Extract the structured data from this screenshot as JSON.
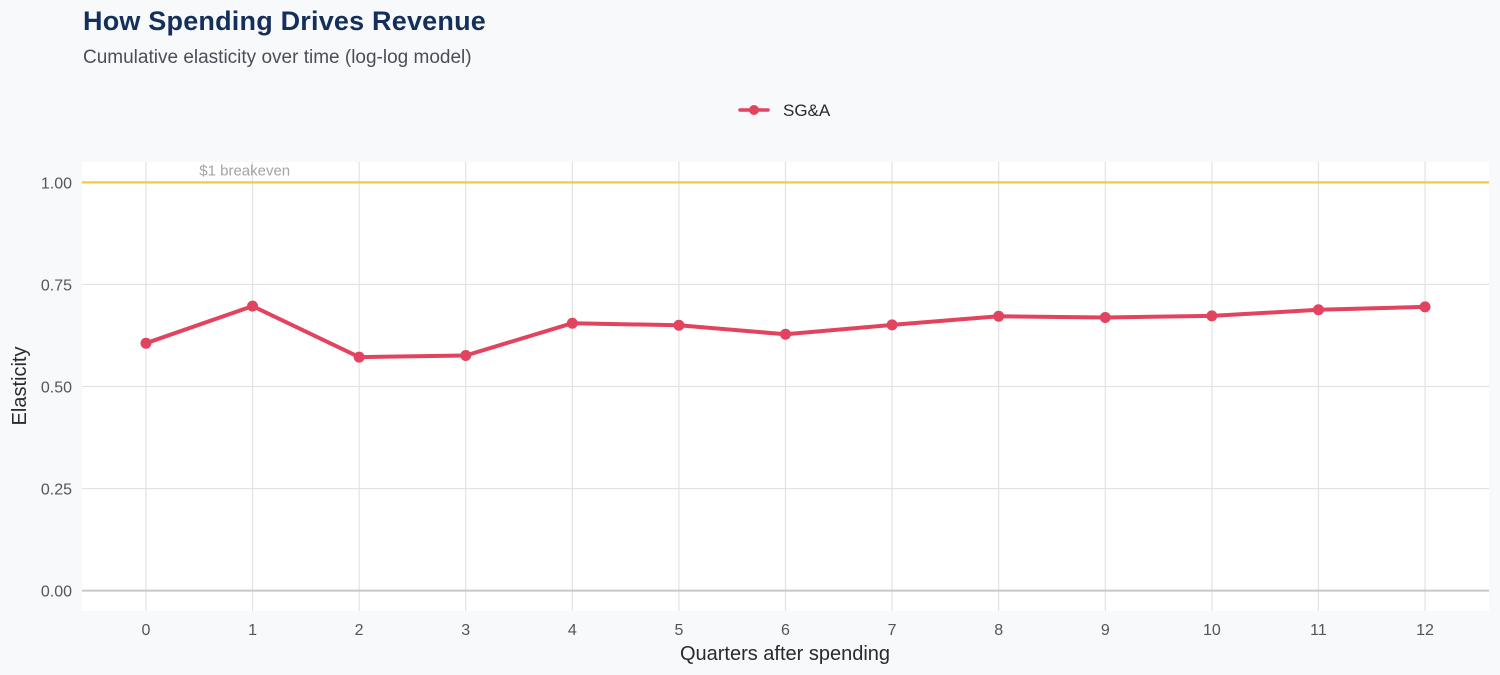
{
  "chart_data": {
    "type": "line",
    "title": "How Spending Drives Revenue",
    "subtitle": "Cumulative elasticity over time (log-log model)",
    "xlabel": "Quarters after spending",
    "ylabel": "Elasticity",
    "x": [
      0,
      1,
      2,
      3,
      4,
      5,
      6,
      7,
      8,
      9,
      10,
      11,
      12
    ],
    "x_ticks": [
      "0",
      "1",
      "2",
      "3",
      "4",
      "5",
      "6",
      "7",
      "8",
      "9",
      "10",
      "11",
      "12"
    ],
    "xlim": [
      -0.6,
      12.6
    ],
    "ylim": [
      -0.05,
      1.05
    ],
    "y_ticks": [
      "0.00",
      "0.25",
      "0.50",
      "0.75",
      "1.00"
    ],
    "series": [
      {
        "name": "SG&A",
        "color": "#e2435f",
        "values": [
          0.606,
          0.697,
          0.572,
          0.576,
          0.655,
          0.65,
          0.628,
          0.651,
          0.672,
          0.669,
          0.673,
          0.688,
          0.695
        ]
      }
    ],
    "reference_line": {
      "y": 1.0,
      "label": "$1 breakeven",
      "color": "#f2c94c"
    },
    "zero_line": {
      "y": 0.0,
      "color": "#c8c8c8"
    },
    "grid": true,
    "legend_position": "top"
  }
}
